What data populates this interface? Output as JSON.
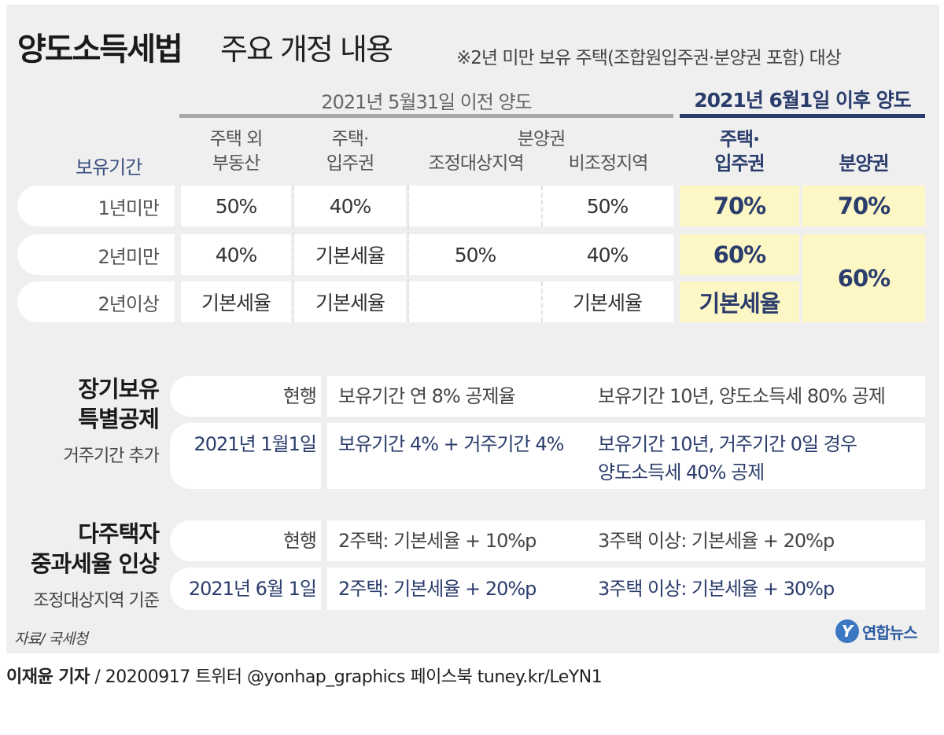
{
  "title": {
    "main": "양도소득세법",
    "sub": "주요 개정 내용"
  },
  "note": "※2년 미만 보유 주택(조합원입주권·분양권 포함) 대상",
  "periods": {
    "before": "2021년 5월31일 이전 양도",
    "after": "2021년 6월1일 이후 양도"
  },
  "headers": {
    "holding_period": "보유기간",
    "non_housing": [
      "주택 외",
      "부동산"
    ],
    "housing": [
      "주택·",
      "입주권"
    ],
    "presale": "분양권",
    "adjusted": "조정대상지역",
    "non_adjusted": "비조정지역",
    "after_housing": [
      "주택·",
      "입주권"
    ],
    "after_presale": "분양권"
  },
  "rows": [
    {
      "label": "1년미만",
      "non_housing": "50%",
      "housing": "40%",
      "adjusted": "",
      "non_adjusted": "50%",
      "after_housing": "70%",
      "after_presale": "70%"
    },
    {
      "label": "2년미만",
      "non_housing": "40%",
      "housing": "기본세율",
      "adjusted": "50%",
      "non_adjusted": "40%",
      "after_housing": "60%",
      "after_presale": "60%"
    },
    {
      "label": "2년이상",
      "non_housing": "기본세율",
      "housing": "기본세율",
      "adjusted": "",
      "non_adjusted": "기본세율",
      "after_housing": "기본세율",
      "after_presale": ""
    }
  ],
  "long_term": {
    "title": [
      "장기보유",
      "특별공제"
    ],
    "subtitle": "거주기간 추가",
    "current": {
      "label": "현행",
      "rate": "보유기간 연 8% 공제율",
      "example": "보유기간 10년, 양도소득세 80% 공제"
    },
    "new": {
      "label": "2021년 1월1일",
      "rate": "보유기간 4% + 거주기간 4%",
      "example_line1": "보유기간 10년, 거주기간 0일 경우",
      "example_line2": "양도소득세 40% 공제"
    }
  },
  "multi_home": {
    "title": [
      "다주택자",
      "중과세율 인상"
    ],
    "subtitle": "조정대상지역 기준",
    "current": {
      "label": "현행",
      "two": "2주택: 기본세율 + 10%p",
      "three": "3주택 이상: 기본세율 + 20%p"
    },
    "new": {
      "label": "2021년 6월 1일",
      "two": "2주택: 기본세율 + 20%p",
      "three": "3주택 이상: 기본세율 + 30%p"
    }
  },
  "source": "자료/ 국세청",
  "logo": {
    "mark": "Y",
    "text": "연합뉴스"
  },
  "credit": {
    "reporter": "이재윤 기자",
    "rest": " / 20200917   트위터 @yonhap_graphics  페이스북 tuney.kr/LeYN1"
  },
  "colors": {
    "navy": "#2b3d6c",
    "highlight": "#fdf6c5",
    "panel": "#efefef",
    "logo_blue": "#3a78c2"
  }
}
